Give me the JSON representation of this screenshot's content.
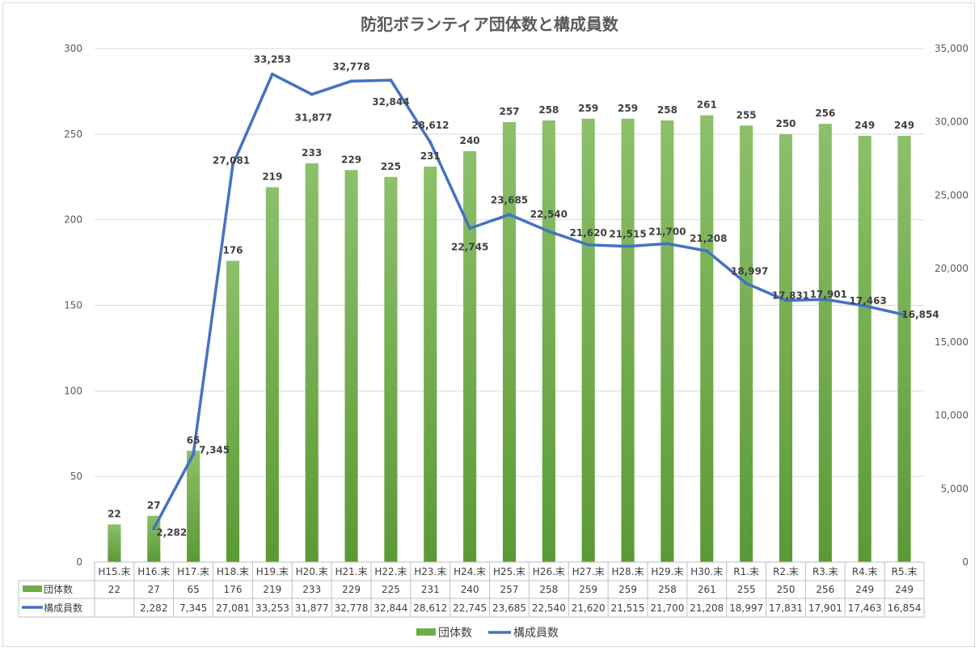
{
  "chart_data": {
    "type": "bar",
    "title": "防犯ボランティア団体数と構成員数",
    "categories": [
      "H15.末",
      "H16.末",
      "H17.末",
      "H18.末",
      "H19.末",
      "H20.末",
      "H21.末",
      "H22.末",
      "H23.末",
      "H24.末",
      "H25.末",
      "H26.末",
      "H27.末",
      "H28.末",
      "H29.末",
      "H30.末",
      "R1.末",
      "R2.末",
      "R3.末",
      "R4.末",
      "R5.末"
    ],
    "series": [
      {
        "name": "団体数",
        "type": "bar",
        "axis": "left",
        "color": "#70ad47",
        "values": [
          22,
          27,
          65,
          176,
          219,
          233,
          229,
          225,
          231,
          240,
          257,
          258,
          259,
          259,
          258,
          261,
          255,
          250,
          256,
          249,
          249
        ],
        "labels": [
          "22",
          "27",
          "65",
          "176",
          "219",
          "233",
          "229",
          "225",
          "231",
          "240",
          "257",
          "258",
          "259",
          "259",
          "258",
          "261",
          "255",
          "250",
          "256",
          "249",
          "249"
        ]
      },
      {
        "name": "構成員数",
        "type": "line",
        "axis": "right",
        "color": "#4472c4",
        "values": [
          null,
          2282,
          7345,
          27081,
          33253,
          31877,
          32778,
          32844,
          28612,
          22745,
          23685,
          22540,
          21620,
          21515,
          21700,
          21208,
          18997,
          17831,
          17901,
          17463,
          16854
        ],
        "labels": [
          "",
          "2,282",
          "7,345",
          "27,081",
          "33,253",
          "31,877",
          "32,778",
          "32,844",
          "28,612",
          "22,745",
          "23,685",
          "22,540",
          "21,620",
          "21,515",
          "21,700",
          "21,208",
          "18,997",
          "17,831",
          "17,901",
          "17,463",
          "16,854"
        ]
      }
    ],
    "y_left": {
      "min": 0,
      "max": 300,
      "step": 50,
      "tick_labels": [
        "0",
        "50",
        "100",
        "150",
        "200",
        "250",
        "300"
      ]
    },
    "y_right": {
      "min": 0,
      "max": 35000,
      "step": 5000,
      "tick_labels": [
        "0",
        "5,000",
        "10,000",
        "15,000",
        "20,000",
        "25,000",
        "30,000",
        "35,000"
      ]
    },
    "grid": true,
    "data_table": true,
    "legend_position": "bottom"
  }
}
